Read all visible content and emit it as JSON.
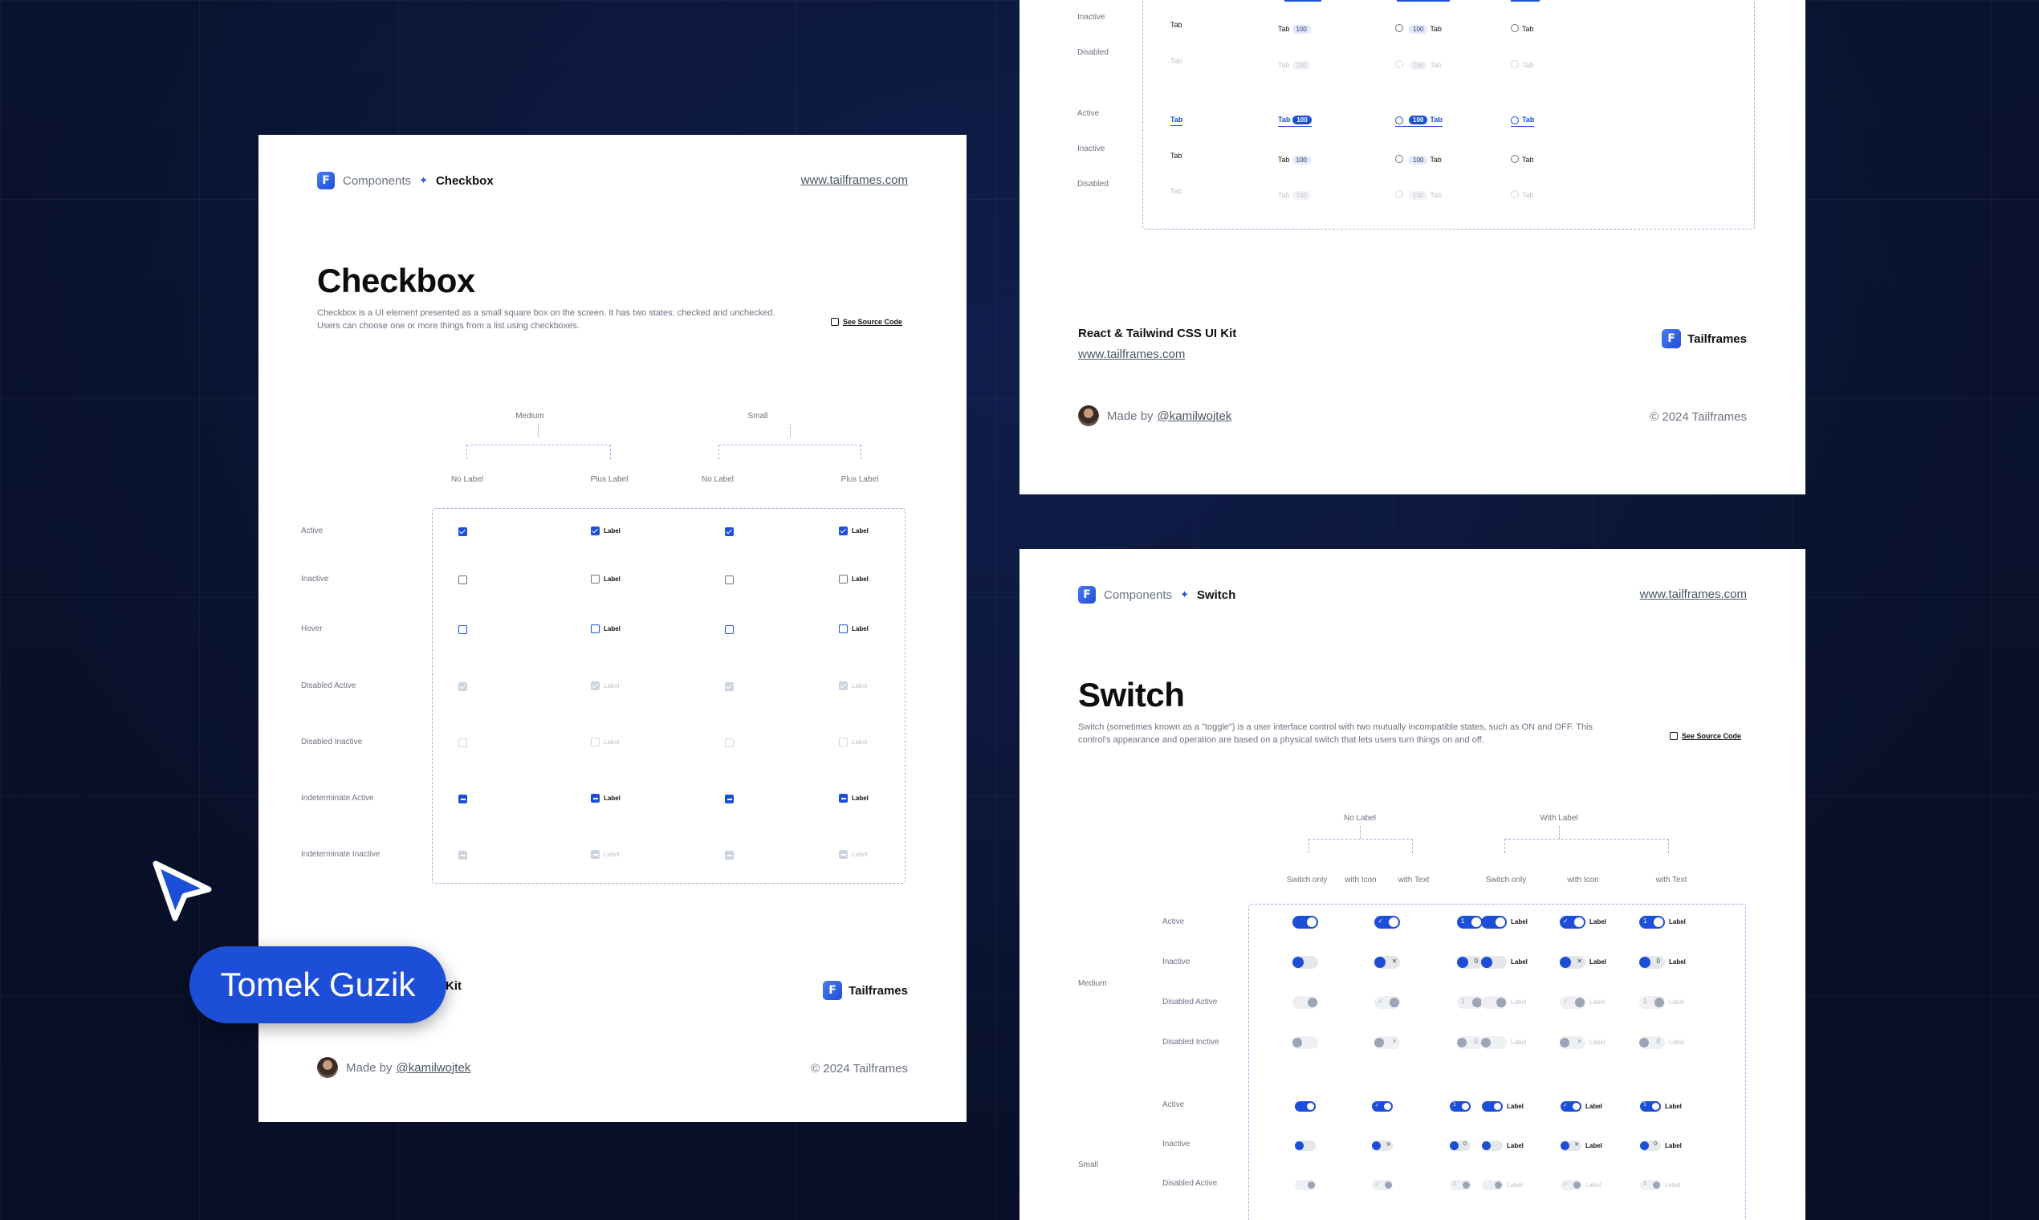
{
  "cursor_badge": {
    "name": "Tomek Guzik"
  },
  "checkbox_card": {
    "breadcrumb": {
      "parent": "Components",
      "current": "Checkbox"
    },
    "url": "www.tailframes.com",
    "title": "Checkbox",
    "description_line1": "Checkbox is a UI element presented as a small square box on the screen. It has two states: checked and unchecked.",
    "description_line2": "Users can choose one or more things from a list using checkboxes.",
    "source_link": "See Source Code",
    "groups": [
      "Medium",
      "Small"
    ],
    "columns": [
      "No Label",
      "Plus Label",
      "No Label",
      "Plus Label"
    ],
    "rows": [
      "Active",
      "Inactive",
      "Hover",
      "Disabled Active",
      "Disabled Inactive",
      "Indeterminate Active",
      "Indeterminate Inactive"
    ],
    "item_label": "Label",
    "footer_title_partial": "Kit",
    "brand": "Tailframes",
    "made_by_prefix": "Made by",
    "made_by_handle": "@kamilwojtek",
    "copyright": "© 2024 Tailframes"
  },
  "tabs_card": {
    "tab_text": "Tab",
    "count": "100",
    "rows": [
      "Inactive",
      "Disabled",
      "Active",
      "Inactive",
      "Disabled"
    ],
    "footer_title": "React & Tailwind CSS UI Kit",
    "footer_url": "www.tailframes.com",
    "brand": "Tailframes",
    "made_by_prefix": "Made by",
    "made_by_handle": "@kamilwojtek",
    "copyright": "© 2024 Tailframes"
  },
  "switch_card": {
    "breadcrumb": {
      "parent": "Components",
      "current": "Switch"
    },
    "url": "www.tailframes.com",
    "title": "Switch",
    "description_line1": "Switch (sometimes known as a \"toggle\") is a user interface control with two mutually incompatible states, such as ON and OFF. This",
    "description_line2": "control's appearance and operation are based on a physical switch that lets users turn things on and off.",
    "source_link": "See Source Code",
    "groups": [
      "No Label",
      "With Label"
    ],
    "columns": [
      "Switch only",
      "with Icon",
      "with Text",
      "Switch only",
      "with Icon",
      "with Text"
    ],
    "sizes": [
      "Medium",
      "Small"
    ],
    "rows_medium": [
      "Active",
      "Inactive",
      "Disabled Active",
      "Disabled Inctive"
    ],
    "rows_small": [
      "Active",
      "Inactive",
      "Disabled Active"
    ],
    "item_label": "Label",
    "on_text": "1",
    "off_text": "0"
  },
  "colors": {
    "accent": "#1d4ed8",
    "background": "#0b1430",
    "dash": "#b9a3ef"
  }
}
